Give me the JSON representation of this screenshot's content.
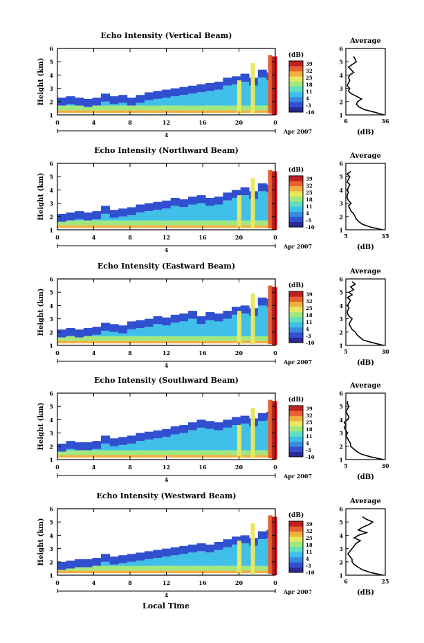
{
  "figure": {
    "xlabel": "Local Time",
    "colormap": [
      "#2a2a90",
      "#3050d0",
      "#3a8ae0",
      "#40c0e8",
      "#60e0c0",
      "#a0e880",
      "#e8e860",
      "#f0b040",
      "#e86030",
      "#c02020"
    ]
  },
  "chart_data": [
    {
      "type": "heatmap",
      "title": "Echo Intensity (Vertical Beam)",
      "ylabel": "Height (km)",
      "xlim": [
        0,
        24
      ],
      "ylim": [
        1,
        6
      ],
      "xticks": [
        "0",
        "4",
        "8",
        "12",
        "16",
        "20",
        "0"
      ],
      "yticks": [
        "1",
        "2",
        "3",
        "4",
        "5",
        "6"
      ],
      "date_label": "Apr 2007",
      "date_marker": "4",
      "colorbar": {
        "unit": "(dB)",
        "ticks": [
          "39",
          "32",
          "25",
          "18",
          "11",
          "4",
          "-3",
          "-10"
        ]
      },
      "layer_top_km": [
        2.3,
        2.4,
        2.3,
        2.2,
        2.3,
        2.6,
        2.4,
        2.5,
        2.3,
        2.5,
        2.7,
        2.8,
        2.9,
        3.0,
        3.1,
        3.2,
        3.3,
        3.4,
        3.5,
        3.8,
        3.9,
        4.1,
        3.8,
        4.4,
        4.2
      ],
      "profile": {
        "title": "Average",
        "xlabel": "(dB)",
        "xticks": [
          "6",
          "36"
        ],
        "xlim": [
          6,
          36
        ],
        "height_km": [
          1.0,
          1.2,
          1.4,
          1.6,
          1.8,
          2.0,
          2.2,
          2.4,
          2.6,
          2.8,
          3.0,
          3.2,
          3.4,
          3.6,
          3.8,
          4.0,
          4.2,
          4.4,
          4.6,
          4.8,
          5.0,
          5.2,
          5.4
        ],
        "db": [
          35,
          28,
          20,
          16,
          14,
          15,
          18,
          14,
          10,
          8,
          9,
          7,
          8,
          9,
          8,
          9,
          12,
          10,
          8,
          11,
          14,
          13,
          12
        ]
      }
    },
    {
      "type": "heatmap",
      "title": "Echo Intensity (Northward Beam)",
      "ylabel": "Height (km)",
      "xlim": [
        0,
        24
      ],
      "ylim": [
        1,
        6
      ],
      "xticks": [
        "0",
        "4",
        "8",
        "12",
        "16",
        "20",
        "0"
      ],
      "yticks": [
        "1",
        "2",
        "3",
        "4",
        "5",
        "6"
      ],
      "date_label": "Apr 2007",
      "date_marker": "4",
      "colorbar": {
        "unit": "(dB)",
        "ticks": [
          "39",
          "32",
          "25",
          "18",
          "11",
          "4",
          "-3",
          "-10"
        ]
      },
      "layer_top_km": [
        2.2,
        2.3,
        2.4,
        2.3,
        2.4,
        2.8,
        2.5,
        2.6,
        2.7,
        2.9,
        3.0,
        3.1,
        3.2,
        3.4,
        3.3,
        3.5,
        3.6,
        3.4,
        3.5,
        3.8,
        4.0,
        4.2,
        3.9,
        4.5,
        4.4
      ],
      "profile": {
        "title": "Average",
        "xlabel": "(dB)",
        "xticks": [
          "5",
          "35"
        ],
        "xlim": [
          5,
          35
        ],
        "height_km": [
          1.0,
          1.2,
          1.4,
          1.6,
          1.8,
          2.0,
          2.2,
          2.4,
          2.6,
          2.8,
          3.0,
          3.2,
          3.4,
          3.6,
          3.8,
          4.0,
          4.2,
          4.4,
          4.6,
          4.8,
          5.0,
          5.2,
          5.4
        ],
        "db": [
          33,
          24,
          18,
          15,
          13,
          12,
          11,
          9,
          8,
          7,
          9,
          7,
          6,
          6,
          7,
          6,
          7,
          8,
          6,
          7,
          8,
          6,
          9
        ]
      }
    },
    {
      "type": "heatmap",
      "title": "Echo Intensity (Eastward Beam)",
      "ylabel": "Height (km)",
      "xlim": [
        0,
        24
      ],
      "ylim": [
        1,
        6
      ],
      "xticks": [
        "0",
        "4",
        "8",
        "12",
        "16",
        "20",
        "0"
      ],
      "yticks": [
        "1",
        "2",
        "3",
        "4",
        "5",
        "6"
      ],
      "date_label": "Apr 2007",
      "date_marker": "4",
      "colorbar": {
        "unit": "(dB)",
        "ticks": [
          "39",
          "32",
          "25",
          "18",
          "11",
          "4",
          "-3",
          "-10"
        ]
      },
      "layer_top_km": [
        2.2,
        2.3,
        2.2,
        2.3,
        2.4,
        2.7,
        2.6,
        2.5,
        2.8,
        2.9,
        3.0,
        3.2,
        3.1,
        3.3,
        3.4,
        3.6,
        3.2,
        3.5,
        3.4,
        3.6,
        3.9,
        4.0,
        3.8,
        4.6,
        4.5
      ],
      "profile": {
        "title": "Average",
        "xlabel": "(dB)",
        "xticks": [
          "5",
          "30"
        ],
        "xlim": [
          5,
          30
        ],
        "height_km": [
          1.0,
          1.2,
          1.4,
          1.6,
          1.8,
          2.0,
          2.2,
          2.4,
          2.6,
          2.8,
          3.0,
          3.2,
          3.4,
          3.6,
          3.8,
          4.0,
          4.2,
          4.4,
          4.6,
          4.8,
          5.0,
          5.2,
          5.4,
          5.6,
          5.8
        ],
        "db": [
          29,
          22,
          16,
          14,
          12,
          11,
          9,
          8,
          7,
          8,
          9,
          7,
          6,
          6,
          7,
          6,
          7,
          8,
          6,
          9,
          7,
          10,
          8,
          11,
          9
        ]
      }
    },
    {
      "type": "heatmap",
      "title": "Echo Intensity (Southward Beam)",
      "ylabel": "Height (km)",
      "xlim": [
        0,
        24
      ],
      "ylim": [
        1,
        6
      ],
      "xticks": [
        "0",
        "4",
        "8",
        "12",
        "16",
        "20",
        "0"
      ],
      "yticks": [
        "1",
        "2",
        "3",
        "4",
        "5",
        "6"
      ],
      "date_label": "Apr 2007",
      "date_marker": "4",
      "colorbar": {
        "unit": "(dB)",
        "ticks": [
          "39",
          "32",
          "25",
          "18",
          "11",
          "4",
          "-3",
          "-10"
        ]
      },
      "layer_top_km": [
        2.2,
        2.4,
        2.3,
        2.3,
        2.4,
        2.8,
        2.6,
        2.7,
        2.8,
        3.0,
        3.1,
        3.2,
        3.3,
        3.5,
        3.6,
        3.8,
        4.0,
        3.9,
        3.8,
        4.0,
        4.2,
        4.3,
        4.1,
        4.5,
        4.6
      ],
      "profile": {
        "title": "Average",
        "xlabel": "(dB)",
        "xticks": [
          "5",
          "30"
        ],
        "xlim": [
          5,
          30
        ],
        "height_km": [
          1.0,
          1.2,
          1.4,
          1.6,
          1.8,
          2.0,
          2.2,
          2.4,
          2.6,
          2.8,
          3.0,
          3.2,
          3.4,
          3.6,
          3.8,
          4.0,
          4.2,
          4.4,
          4.6,
          4.8,
          5.0,
          5.2,
          5.4
        ],
        "db": [
          29,
          21,
          15,
          12,
          10,
          8,
          8,
          7,
          6,
          5,
          6,
          5,
          4,
          5,
          4,
          6,
          7,
          6,
          5,
          6,
          7,
          6,
          6
        ]
      }
    },
    {
      "type": "heatmap",
      "title": "Echo Intensity (Westward Beam)",
      "ylabel": "Height (km)",
      "xlim": [
        0,
        24
      ],
      "ylim": [
        1,
        6
      ],
      "xticks": [
        "0",
        "4",
        "8",
        "12",
        "16",
        "20",
        "0"
      ],
      "yticks": [
        "1",
        "2",
        "3",
        "4",
        "5",
        "6"
      ],
      "date_label": "Apr 2007",
      "date_marker": "4",
      "colorbar": {
        "unit": "(dB)",
        "ticks": [
          "39",
          "32",
          "25",
          "18",
          "11",
          "4",
          "-3",
          "-10"
        ]
      },
      "layer_top_km": [
        2.0,
        2.1,
        2.2,
        2.2,
        2.3,
        2.6,
        2.4,
        2.5,
        2.6,
        2.7,
        2.8,
        2.9,
        3.0,
        3.1,
        3.2,
        3.3,
        3.4,
        3.3,
        3.5,
        3.7,
        3.9,
        4.0,
        3.8,
        4.3,
        4.4
      ],
      "profile": {
        "title": "Average",
        "xlabel": "(dB)",
        "xticks": [
          "6",
          "25"
        ],
        "xlim": [
          6,
          25
        ],
        "height_km": [
          1.0,
          1.2,
          1.4,
          1.6,
          1.8,
          2.0,
          2.2,
          2.4,
          2.6,
          2.8,
          3.0,
          3.2,
          3.4,
          3.6,
          3.8,
          4.0,
          4.2,
          4.4,
          4.6,
          4.8,
          5.0,
          5.2,
          5.4
        ],
        "db": [
          24,
          18,
          14,
          12,
          10,
          9,
          9,
          8,
          7,
          8,
          9,
          10,
          11,
          13,
          10,
          12,
          16,
          12,
          14,
          17,
          19,
          16,
          14
        ]
      }
    }
  ]
}
